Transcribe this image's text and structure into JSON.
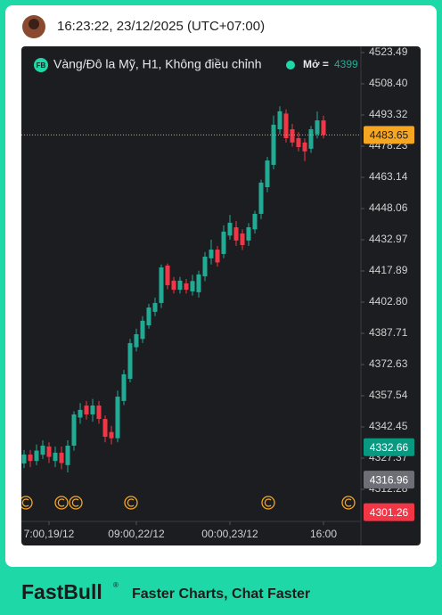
{
  "header": {
    "timestamp": "16:23:22, 23/12/2025 (UTC+07:00)"
  },
  "chart_data": {
    "type": "candlestick",
    "legend": {
      "badge": "FB",
      "symbol": "Vàng/Đô la Mỹ, H1, Không điều chỉnh",
      "open_label": "Mở =",
      "open_value": "4399"
    },
    "categories": [
      null,
      null,
      null,
      null,
      "7:00,19/12",
      null,
      null,
      null,
      null,
      null,
      null,
      null,
      null,
      null,
      null,
      null,
      null,
      null,
      "09:00,22/12",
      null,
      null,
      null,
      null,
      null,
      null,
      null,
      null,
      null,
      null,
      null,
      null,
      null,
      null,
      "00:00,23/12",
      null,
      null,
      null,
      null,
      null,
      null,
      null,
      null,
      null,
      null,
      null,
      null,
      null,
      null,
      "16:00"
    ],
    "open": [
      4324.8,
      4329.1,
      4326,
      4329,
      4333,
      4326,
      4330,
      4324,
      4333.4,
      4347,
      4352.8,
      4348.5,
      4352.8,
      4346.3,
      4340,
      4337,
      4355,
      4365.7,
      4381,
      4385,
      4391.6,
      4398.1,
      4402.4,
      4420.5,
      4413.2,
      4408.8,
      4411.9,
      4408,
      4407.6,
      4415.3,
      4424,
      4428.2,
      4426.1,
      4435,
      4439,
      4436,
      4432.6,
      4438,
      4445.5,
      4458.4,
      4469.2,
      4486.4,
      4494,
      4486.4,
      4482.1,
      4480,
      4477,
      4484,
      4490.7
    ],
    "high": [
      4331.3,
      4331.3,
      4334,
      4336,
      4335,
      4333,
      4333,
      4336,
      4350,
      4354,
      4355,
      4356,
      4355,
      4348,
      4343,
      4360,
      4370,
      4385,
      4390,
      4396,
      4402,
      4405,
      4421,
      4421.5,
      4415,
      4415,
      4414,
      4416,
      4418,
      4427,
      4433,
      4430,
      4440,
      4445,
      4442,
      4438,
      4441,
      4447,
      4462,
      4473,
      4493,
      4497.5,
      4496,
      4489,
      4485,
      4482,
      4488,
      4495,
      4493
    ],
    "low": [
      4322.6,
      4323,
      4324,
      4327,
      4325,
      4323,
      4322,
      4320.5,
      4331,
      4344,
      4346,
      4345,
      4344,
      4335,
      4334,
      4335,
      4353,
      4364,
      4379,
      4383,
      4390,
      4396,
      4400,
      4409,
      4407,
      4407,
      4407,
      4406,
      4405,
      4413,
      4421,
      4420,
      4424,
      4433,
      4430,
      4428,
      4430,
      4436,
      4443,
      4456,
      4467,
      4484,
      4480,
      4478,
      4475.7,
      4471,
      4475,
      4482,
      4482
    ],
    "close": [
      4329.1,
      4326,
      4331,
      4333.4,
      4328,
      4330,
      4325,
      4333.4,
      4348.5,
      4350.7,
      4348.5,
      4352.8,
      4346.3,
      4337.7,
      4337,
      4357.1,
      4367.9,
      4383,
      4387.3,
      4393.8,
      4400.2,
      4402.4,
      4419.6,
      4411,
      4408.8,
      4413.2,
      4408.8,
      4413,
      4416.2,
      4424.8,
      4428.2,
      4422,
      4436.9,
      4441.2,
      4432.6,
      4430.4,
      4439,
      4445.5,
      4460.6,
      4471.3,
      4488.6,
      4495.1,
      4482.1,
      4480,
      4477.8,
      4475.7,
      4486.4,
      4490.7,
      4483.65
    ],
    "up_color": "#22ab94",
    "down_color": "#f23645",
    "ylim": [
      4297.2,
      4526.5
    ],
    "yticks": [
      4523.49,
      {
        "value": 4508.4,
        "label": "4508.40"
      },
      4493.32,
      4478.23,
      4463.14,
      4448.06,
      4432.97,
      4417.89,
      {
        "value": 4402.8,
        "label": "4402.80"
      },
      4387.71,
      4372.63,
      4357.54,
      4342.45,
      4327.37,
      4312.28
    ],
    "price_labels": [
      {
        "value": 4483.65,
        "color": "#f5a623"
      },
      {
        "value": 4332.66,
        "color": "#089981"
      },
      {
        "value": 4316.96,
        "color": "#6e6f76"
      },
      {
        "value": 4301.26,
        "color": "#f23645"
      }
    ]
  },
  "footer": {
    "brand": "FastBull",
    "mark": "®",
    "tagline": "Faster Charts, Chat Faster"
  }
}
